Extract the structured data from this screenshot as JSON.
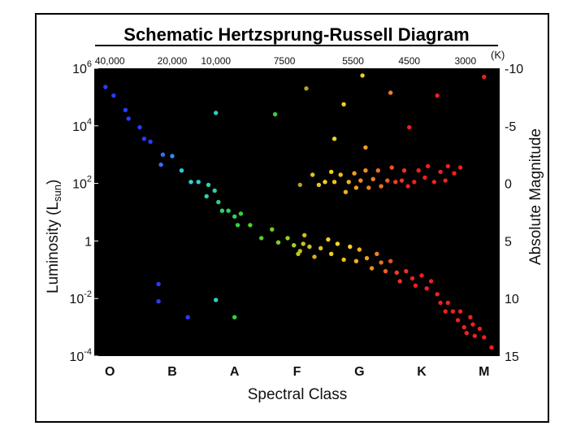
{
  "chart_data": {
    "type": "scatter",
    "title": "Schematic Hertzsprung-Russell Diagram",
    "xlabel": "Spectral Class",
    "ylabel": "Luminosity (L",
    "ylabel_sub": "sun",
    "ylabel_close": ")",
    "ylabel_right": "Absolute Magnitude",
    "top_axis_unit": "(K)",
    "background": "#000000",
    "x_categories": [
      "O",
      "B",
      "A",
      "F",
      "G",
      "K",
      "M"
    ],
    "top_ticks": [
      {
        "label": "40,000",
        "x": 0.0
      },
      {
        "label": "20,000",
        "x": 1.0
      },
      {
        "label": "10,000",
        "x": 1.7
      },
      {
        "label": "7500",
        "x": 2.8
      },
      {
        "label": "5500",
        "x": 3.9
      },
      {
        "label": "4500",
        "x": 4.8
      },
      {
        "label": "3000",
        "x": 5.7
      }
    ],
    "left_ticks": [
      {
        "base": "10",
        "exp": "6",
        "log": 6
      },
      {
        "base": "10",
        "exp": "4",
        "log": 4
      },
      {
        "base": "10",
        "exp": "2",
        "log": 2
      },
      {
        "base": "1",
        "exp": "",
        "log": 0
      },
      {
        "base": "10",
        "exp": "-2",
        "log": -2
      },
      {
        "base": "10",
        "exp": "-4",
        "log": -4
      }
    ],
    "right_ticks": [
      {
        "label": "-10",
        "log": 6
      },
      {
        "label": "-5",
        "log": 4
      },
      {
        "label": "0",
        "log": 2
      },
      {
        "label": "5",
        "log": 0
      },
      {
        "label": "10",
        "log": -2
      },
      {
        "label": "15",
        "log": -4
      }
    ],
    "xlim": [
      -0.25,
      6.25
    ],
    "ylim_log10": [
      -4,
      6
    ],
    "points": [
      {
        "x": -0.07,
        "y": 5.35,
        "c": "#2a3cff"
      },
      {
        "x": 0.06,
        "y": 5.05,
        "c": "#2a3cff"
      },
      {
        "x": 0.25,
        "y": 4.55,
        "c": "#2a3cff"
      },
      {
        "x": 0.3,
        "y": 4.25,
        "c": "#2a3cff"
      },
      {
        "x": 0.48,
        "y": 3.95,
        "c": "#2a3cff"
      },
      {
        "x": 0.55,
        "y": 3.55,
        "c": "#2a3cff"
      },
      {
        "x": 0.65,
        "y": 3.45,
        "c": "#2a3cff"
      },
      {
        "x": 0.85,
        "y": 3.0,
        "c": "#3a6cff"
      },
      {
        "x": 0.82,
        "y": 2.65,
        "c": "#3a6cff"
      },
      {
        "x": 1.0,
        "y": 2.95,
        "c": "#2f8cff"
      },
      {
        "x": 1.15,
        "y": 2.45,
        "c": "#2fc8d8"
      },
      {
        "x": 1.3,
        "y": 2.05,
        "c": "#2fd0d0"
      },
      {
        "x": 1.42,
        "y": 2.05,
        "c": "#2fd0d0"
      },
      {
        "x": 1.58,
        "y": 1.95,
        "c": "#2fd0b0"
      },
      {
        "x": 1.55,
        "y": 1.55,
        "c": "#2fd0b0"
      },
      {
        "x": 1.68,
        "y": 1.75,
        "c": "#2fd0a0"
      },
      {
        "x": 1.74,
        "y": 1.35,
        "c": "#2fd080"
      },
      {
        "x": 1.8,
        "y": 1.05,
        "c": "#2fd070"
      },
      {
        "x": 1.9,
        "y": 1.05,
        "c": "#2fd060"
      },
      {
        "x": 2.0,
        "y": 0.85,
        "c": "#34d050"
      },
      {
        "x": 2.05,
        "y": 0.55,
        "c": "#34d040"
      },
      {
        "x": 2.1,
        "y": 0.95,
        "c": "#34d040"
      },
      {
        "x": 2.25,
        "y": 0.55,
        "c": "#50d030"
      },
      {
        "x": 2.43,
        "y": 0.1,
        "c": "#50d030"
      },
      {
        "x": 2.6,
        "y": 0.4,
        "c": "#70d020"
      },
      {
        "x": 2.7,
        "y": -0.05,
        "c": "#80d020"
      },
      {
        "x": 2.85,
        "y": 0.1,
        "c": "#9ad020"
      },
      {
        "x": 2.95,
        "y": -0.15,
        "c": "#a8d020"
      },
      {
        "x": 3.02,
        "y": -0.45,
        "c": "#b8c820"
      },
      {
        "x": 3.1,
        "y": -0.1,
        "c": "#c8c820"
      },
      {
        "x": 3.12,
        "y": 0.2,
        "c": "#d0c020"
      },
      {
        "x": 3.05,
        "y": -0.35,
        "c": "#c8b820"
      },
      {
        "x": 3.2,
        "y": -0.2,
        "c": "#d8c020"
      },
      {
        "x": 3.28,
        "y": -0.55,
        "c": "#d8b020"
      },
      {
        "x": 3.38,
        "y": -0.25,
        "c": "#e0c020"
      },
      {
        "x": 3.5,
        "y": 0.05,
        "c": "#f0d020"
      },
      {
        "x": 3.55,
        "y": -0.45,
        "c": "#f0d020"
      },
      {
        "x": 3.65,
        "y": -0.1,
        "c": "#f8d820"
      },
      {
        "x": 3.75,
        "y": -0.65,
        "c": "#f0c020"
      },
      {
        "x": 3.85,
        "y": -0.2,
        "c": "#f8d020"
      },
      {
        "x": 3.95,
        "y": -0.7,
        "c": "#f0b020"
      },
      {
        "x": 4.0,
        "y": -0.3,
        "c": "#f0b020"
      },
      {
        "x": 4.12,
        "y": -0.6,
        "c": "#f0a020"
      },
      {
        "x": 4.2,
        "y": -0.95,
        "c": "#f09020"
      },
      {
        "x": 4.28,
        "y": -0.45,
        "c": "#f08020"
      },
      {
        "x": 4.35,
        "y": -0.75,
        "c": "#f07020"
      },
      {
        "x": 4.42,
        "y": -1.05,
        "c": "#f06020"
      },
      {
        "x": 4.5,
        "y": -0.7,
        "c": "#f05020"
      },
      {
        "x": 4.6,
        "y": -1.1,
        "c": "#f04020"
      },
      {
        "x": 4.65,
        "y": -1.4,
        "c": "#f03020"
      },
      {
        "x": 4.75,
        "y": -1.05,
        "c": "#f03020"
      },
      {
        "x": 4.85,
        "y": -1.3,
        "c": "#f02020"
      },
      {
        "x": 4.9,
        "y": -1.55,
        "c": "#f02020"
      },
      {
        "x": 5.0,
        "y": -1.2,
        "c": "#f02020"
      },
      {
        "x": 5.08,
        "y": -1.65,
        "c": "#f02020"
      },
      {
        "x": 5.15,
        "y": -1.4,
        "c": "#f02020"
      },
      {
        "x": 5.25,
        "y": -1.85,
        "c": "#f02020"
      },
      {
        "x": 5.3,
        "y": -2.15,
        "c": "#f02020"
      },
      {
        "x": 5.38,
        "y": -2.45,
        "c": "#f02020"
      },
      {
        "x": 5.42,
        "y": -2.15,
        "c": "#f02020"
      },
      {
        "x": 5.5,
        "y": -2.45,
        "c": "#f02020"
      },
      {
        "x": 5.58,
        "y": -2.75,
        "c": "#f02020"
      },
      {
        "x": 5.62,
        "y": -2.45,
        "c": "#f02020"
      },
      {
        "x": 5.68,
        "y": -3.0,
        "c": "#f02020"
      },
      {
        "x": 5.72,
        "y": -3.2,
        "c": "#f02020"
      },
      {
        "x": 5.78,
        "y": -2.65,
        "c": "#f02020"
      },
      {
        "x": 5.82,
        "y": -2.9,
        "c": "#f02020"
      },
      {
        "x": 5.85,
        "y": -3.3,
        "c": "#f02020"
      },
      {
        "x": 5.93,
        "y": -3.05,
        "c": "#f02020"
      },
      {
        "x": 6.0,
        "y": -3.35,
        "c": "#f02020"
      },
      {
        "x": 6.12,
        "y": -3.7,
        "c": "#f02020"
      },
      {
        "x": 3.05,
        "y": 1.95,
        "c": "#b8a020"
      },
      {
        "x": 3.25,
        "y": 2.3,
        "c": "#e0c020"
      },
      {
        "x": 3.35,
        "y": 1.95,
        "c": "#e8c820"
      },
      {
        "x": 3.45,
        "y": 2.05,
        "c": "#f0d020"
      },
      {
        "x": 3.55,
        "y": 2.4,
        "c": "#f0d020"
      },
      {
        "x": 3.6,
        "y": 2.05,
        "c": "#f0c020"
      },
      {
        "x": 3.7,
        "y": 2.3,
        "c": "#f0c020"
      },
      {
        "x": 3.78,
        "y": 1.7,
        "c": "#f0b020"
      },
      {
        "x": 3.83,
        "y": 2.05,
        "c": "#f0b020"
      },
      {
        "x": 3.92,
        "y": 2.35,
        "c": "#f0a020"
      },
      {
        "x": 3.95,
        "y": 1.85,
        "c": "#f0a020"
      },
      {
        "x": 4.02,
        "y": 2.1,
        "c": "#f09020"
      },
      {
        "x": 4.1,
        "y": 2.45,
        "c": "#f09020"
      },
      {
        "x": 4.15,
        "y": 1.85,
        "c": "#f08020"
      },
      {
        "x": 4.22,
        "y": 2.15,
        "c": "#f08020"
      },
      {
        "x": 4.3,
        "y": 2.45,
        "c": "#f07020"
      },
      {
        "x": 4.35,
        "y": 1.9,
        "c": "#f07020"
      },
      {
        "x": 4.45,
        "y": 2.1,
        "c": "#f06020"
      },
      {
        "x": 4.52,
        "y": 2.55,
        "c": "#f05020"
      },
      {
        "x": 4.58,
        "y": 2.05,
        "c": "#f04020"
      },
      {
        "x": 4.68,
        "y": 2.1,
        "c": "#f03020"
      },
      {
        "x": 4.72,
        "y": 2.45,
        "c": "#f03020"
      },
      {
        "x": 4.78,
        "y": 1.9,
        "c": "#f02020"
      },
      {
        "x": 4.88,
        "y": 2.05,
        "c": "#f02020"
      },
      {
        "x": 4.95,
        "y": 2.45,
        "c": "#f02020"
      },
      {
        "x": 5.05,
        "y": 2.2,
        "c": "#f02020"
      },
      {
        "x": 5.1,
        "y": 2.6,
        "c": "#f02020"
      },
      {
        "x": 5.2,
        "y": 2.05,
        "c": "#f02020"
      },
      {
        "x": 5.3,
        "y": 2.4,
        "c": "#f02020"
      },
      {
        "x": 5.38,
        "y": 2.1,
        "c": "#f02020"
      },
      {
        "x": 5.42,
        "y": 2.6,
        "c": "#f02020"
      },
      {
        "x": 5.52,
        "y": 2.35,
        "c": "#f02020"
      },
      {
        "x": 5.62,
        "y": 2.55,
        "c": "#f02020"
      },
      {
        "x": 1.7,
        "y": 4.45,
        "c": "#2fd0c0"
      },
      {
        "x": 2.65,
        "y": 4.4,
        "c": "#34d040"
      },
      {
        "x": 3.15,
        "y": 5.3,
        "c": "#b8a020"
      },
      {
        "x": 3.6,
        "y": 3.55,
        "c": "#f0d020"
      },
      {
        "x": 3.75,
        "y": 4.75,
        "c": "#f0d020"
      },
      {
        "x": 4.05,
        "y": 5.75,
        "c": "#f0d020"
      },
      {
        "x": 4.1,
        "y": 3.25,
        "c": "#f0a020"
      },
      {
        "x": 4.5,
        "y": 5.15,
        "c": "#f08020"
      },
      {
        "x": 4.8,
        "y": 3.95,
        "c": "#f02020"
      },
      {
        "x": 5.25,
        "y": 5.05,
        "c": "#f02020"
      },
      {
        "x": 6.0,
        "y": 5.7,
        "c": "#f02020"
      },
      {
        "x": 0.78,
        "y": -1.5,
        "c": "#2a3cff"
      },
      {
        "x": 0.78,
        "y": -2.1,
        "c": "#2a3cff"
      },
      {
        "x": 1.25,
        "y": -2.65,
        "c": "#2a3cff"
      },
      {
        "x": 1.7,
        "y": -2.05,
        "c": "#2fd0c0"
      },
      {
        "x": 2.0,
        "y": -2.65,
        "c": "#34d040"
      }
    ]
  }
}
